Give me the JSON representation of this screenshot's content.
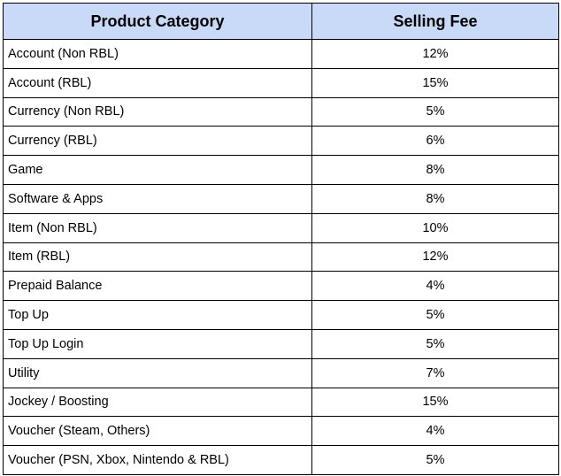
{
  "table": {
    "header_color": "#c9daf8",
    "columns": [
      "Product Category",
      "Selling Fee"
    ],
    "rows": [
      {
        "category": "Account (Non RBL)",
        "fee": "12%"
      },
      {
        "category": "Account (RBL)",
        "fee": "15%"
      },
      {
        "category": "Currency (Non RBL)",
        "fee": "5%"
      },
      {
        "category": "Currency (RBL)",
        "fee": "6%"
      },
      {
        "category": "Game",
        "fee": "8%"
      },
      {
        "category": "Software & Apps",
        "fee": "8%"
      },
      {
        "category": "Item (Non RBL)",
        "fee": "10%"
      },
      {
        "category": "Item (RBL)",
        "fee": "12%"
      },
      {
        "category": "Prepaid Balance",
        "fee": "4%"
      },
      {
        "category": "Top Up",
        "fee": "5%"
      },
      {
        "category": "Top Up Login",
        "fee": "5%"
      },
      {
        "category": "Utility",
        "fee": "7%"
      },
      {
        "category": "Jockey / Boosting",
        "fee": "15%"
      },
      {
        "category": "Voucher (Steam, Others)",
        "fee": "4%"
      },
      {
        "category": "Voucher (PSN, Xbox, Nintendo & RBL)",
        "fee": "5%"
      }
    ]
  }
}
